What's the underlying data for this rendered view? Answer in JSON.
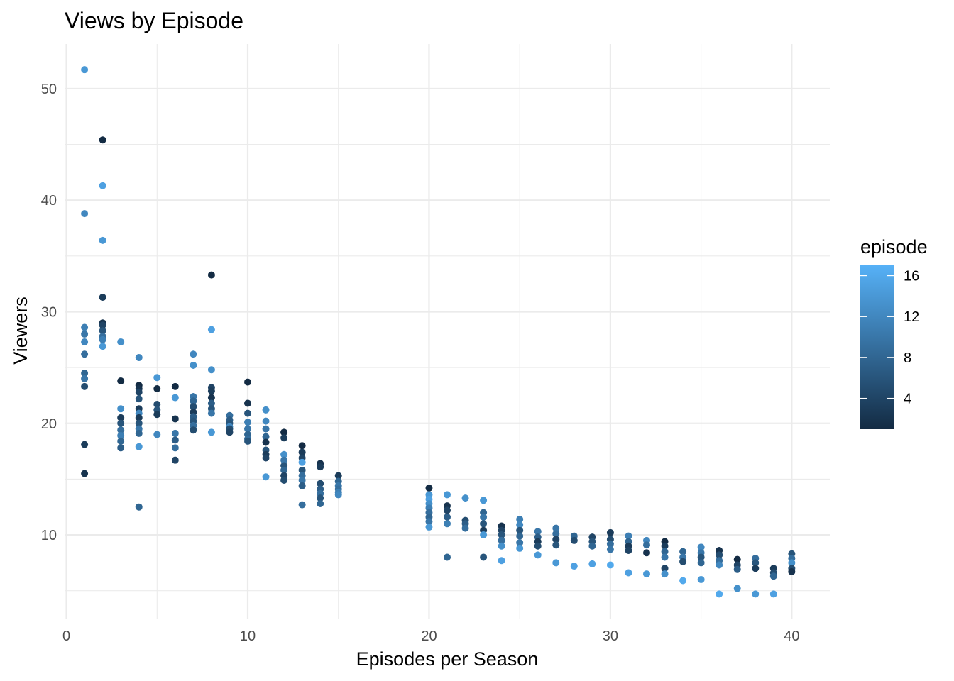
{
  "chart_data": {
    "type": "scatter",
    "title": "Views by Episode",
    "xlabel": "Episodes per Season",
    "ylabel": "Viewers",
    "xlim": [
      -0.1,
      42.1
    ],
    "ylim": [
      2.5,
      54
    ],
    "x_ticks": [
      0,
      10,
      20,
      30,
      40
    ],
    "y_ticks": [
      10,
      20,
      30,
      40,
      50
    ],
    "grid": true,
    "legend": {
      "title": "episode",
      "placement": "right",
      "ticks": [
        4,
        8,
        12,
        16
      ],
      "range": [
        1,
        17
      ],
      "color_low": "#132b43",
      "color_high": "#56b1f7"
    },
    "points": [
      [
        1,
        51.7,
        14
      ],
      [
        1,
        38.8,
        12
      ],
      [
        1,
        28.6,
        11
      ],
      [
        1,
        28.0,
        10
      ],
      [
        1,
        27.3,
        12
      ],
      [
        1,
        26.2,
        9
      ],
      [
        1,
        24.5,
        8
      ],
      [
        1,
        24.0,
        10
      ],
      [
        1,
        23.3,
        5
      ],
      [
        1,
        18.1,
        3
      ],
      [
        1,
        15.5,
        2
      ],
      [
        2,
        45.4,
        1
      ],
      [
        2,
        41.3,
        15
      ],
      [
        2,
        36.4,
        14
      ],
      [
        2,
        31.3,
        3
      ],
      [
        2,
        29.0,
        2
      ],
      [
        2,
        28.8,
        4
      ],
      [
        2,
        28.3,
        6
      ],
      [
        2,
        27.8,
        9
      ],
      [
        2,
        27.5,
        11
      ],
      [
        2,
        26.9,
        14
      ],
      [
        3,
        27.3,
        13
      ],
      [
        3,
        23.8,
        1
      ],
      [
        3,
        21.3,
        13
      ],
      [
        3,
        20.5,
        3
      ],
      [
        3,
        20.0,
        6
      ],
      [
        3,
        19.4,
        9
      ],
      [
        3,
        18.9,
        11
      ],
      [
        3,
        18.4,
        8
      ],
      [
        3,
        17.8,
        7
      ],
      [
        4,
        25.9,
        12
      ],
      [
        4,
        23.4,
        1
      ],
      [
        4,
        23.1,
        2
      ],
      [
        4,
        22.8,
        4
      ],
      [
        4,
        22.2,
        6
      ],
      [
        4,
        21.3,
        3
      ],
      [
        4,
        20.9,
        12
      ],
      [
        4,
        20.5,
        3
      ],
      [
        4,
        20.0,
        6
      ],
      [
        4,
        19.5,
        10
      ],
      [
        4,
        19.1,
        8
      ],
      [
        4,
        17.9,
        14
      ],
      [
        4,
        12.5,
        8
      ],
      [
        5,
        24.1,
        14
      ],
      [
        5,
        23.1,
        1
      ],
      [
        5,
        21.7,
        5
      ],
      [
        5,
        21.2,
        6
      ],
      [
        5,
        20.8,
        3
      ],
      [
        5,
        19.0,
        12
      ],
      [
        6,
        23.3,
        1
      ],
      [
        6,
        22.3,
        14
      ],
      [
        6,
        20.4,
        2
      ],
      [
        6,
        19.1,
        10
      ],
      [
        6,
        18.5,
        7
      ],
      [
        6,
        17.8,
        9
      ],
      [
        6,
        16.7,
        4
      ],
      [
        7,
        26.2,
        12
      ],
      [
        7,
        25.2,
        13
      ],
      [
        7,
        22.4,
        10
      ],
      [
        7,
        22.0,
        8
      ],
      [
        7,
        21.5,
        5
      ],
      [
        7,
        21.0,
        3
      ],
      [
        7,
        20.6,
        7
      ],
      [
        7,
        20.2,
        6
      ],
      [
        7,
        19.8,
        9
      ],
      [
        7,
        19.4,
        5
      ],
      [
        8,
        33.3,
        1
      ],
      [
        8,
        28.4,
        15
      ],
      [
        8,
        24.8,
        13
      ],
      [
        8,
        23.2,
        4
      ],
      [
        8,
        22.9,
        3
      ],
      [
        8,
        22.3,
        2
      ],
      [
        8,
        21.8,
        7
      ],
      [
        8,
        21.3,
        6
      ],
      [
        8,
        20.9,
        10
      ],
      [
        8,
        19.2,
        14
      ],
      [
        9,
        20.7,
        9
      ],
      [
        9,
        20.3,
        7
      ],
      [
        9,
        20.0,
        6
      ],
      [
        9,
        19.7,
        12
      ],
      [
        9,
        19.5,
        5
      ],
      [
        9,
        19.2,
        4
      ],
      [
        10,
        23.7,
        1
      ],
      [
        10,
        21.8,
        2
      ],
      [
        10,
        20.9,
        6
      ],
      [
        10,
        20.1,
        11
      ],
      [
        10,
        19.5,
        10
      ],
      [
        10,
        19.0,
        8
      ],
      [
        10,
        18.6,
        9
      ],
      [
        10,
        18.4,
        6
      ],
      [
        11,
        21.2,
        13
      ],
      [
        11,
        20.2,
        12
      ],
      [
        11,
        19.5,
        10
      ],
      [
        11,
        18.8,
        8
      ],
      [
        11,
        18.3,
        2
      ],
      [
        11,
        17.6,
        6
      ],
      [
        11,
        17.2,
        3
      ],
      [
        11,
        16.9,
        4
      ],
      [
        11,
        15.2,
        14
      ],
      [
        12,
        19.2,
        1
      ],
      [
        12,
        18.7,
        3
      ],
      [
        12,
        17.2,
        13
      ],
      [
        12,
        16.7,
        10
      ],
      [
        12,
        16.2,
        6
      ],
      [
        12,
        15.8,
        8
      ],
      [
        12,
        15.3,
        4
      ],
      [
        12,
        14.9,
        5
      ],
      [
        13,
        18.0,
        1
      ],
      [
        13,
        17.4,
        3
      ],
      [
        13,
        16.9,
        4
      ],
      [
        13,
        16.5,
        15
      ],
      [
        13,
        15.8,
        6
      ],
      [
        13,
        15.3,
        9
      ],
      [
        13,
        14.9,
        10
      ],
      [
        13,
        14.4,
        7
      ],
      [
        13,
        12.7,
        9
      ],
      [
        14,
        16.4,
        2
      ],
      [
        14,
        16.1,
        3
      ],
      [
        14,
        14.6,
        5
      ],
      [
        14,
        14.1,
        7
      ],
      [
        14,
        13.7,
        9
      ],
      [
        14,
        13.3,
        6
      ],
      [
        14,
        12.8,
        8
      ],
      [
        15,
        15.3,
        3
      ],
      [
        15,
        14.8,
        8
      ],
      [
        15,
        14.4,
        10
      ],
      [
        15,
        14.1,
        9
      ],
      [
        15,
        13.8,
        11
      ],
      [
        15,
        13.6,
        12
      ],
      [
        20,
        14.2,
        1
      ],
      [
        20,
        13.6,
        14
      ],
      [
        20,
        13.2,
        15
      ],
      [
        20,
        12.8,
        13
      ],
      [
        20,
        12.4,
        11
      ],
      [
        20,
        12.0,
        9
      ],
      [
        20,
        11.6,
        8
      ],
      [
        20,
        11.2,
        10
      ],
      [
        20,
        10.7,
        14
      ],
      [
        21,
        13.6,
        14
      ],
      [
        21,
        12.6,
        2
      ],
      [
        21,
        12.2,
        4
      ],
      [
        21,
        11.6,
        7
      ],
      [
        21,
        11.0,
        11
      ],
      [
        21,
        8.0,
        8
      ],
      [
        22,
        13.3,
        13
      ],
      [
        22,
        11.3,
        5
      ],
      [
        22,
        11.0,
        7
      ],
      [
        22,
        10.6,
        9
      ],
      [
        23,
        13.1,
        14
      ],
      [
        23,
        12.0,
        8
      ],
      [
        23,
        11.6,
        10
      ],
      [
        23,
        11.0,
        6
      ],
      [
        23,
        10.4,
        3
      ],
      [
        23,
        10.0,
        14
      ],
      [
        23,
        8.0,
        6
      ],
      [
        24,
        10.8,
        2
      ],
      [
        24,
        10.4,
        4
      ],
      [
        24,
        10.0,
        6
      ],
      [
        24,
        9.5,
        9
      ],
      [
        24,
        9.0,
        13
      ],
      [
        24,
        7.7,
        15
      ],
      [
        25,
        11.4,
        11
      ],
      [
        25,
        10.9,
        12
      ],
      [
        25,
        10.4,
        6
      ],
      [
        25,
        9.9,
        8
      ],
      [
        25,
        9.3,
        10
      ],
      [
        25,
        8.8,
        14
      ],
      [
        26,
        10.3,
        10
      ],
      [
        26,
        9.8,
        7
      ],
      [
        26,
        9.4,
        3
      ],
      [
        26,
        9.0,
        5
      ],
      [
        26,
        8.2,
        14
      ],
      [
        27,
        10.6,
        10
      ],
      [
        27,
        10.1,
        9
      ],
      [
        27,
        9.6,
        4
      ],
      [
        27,
        9.1,
        6
      ],
      [
        27,
        7.5,
        14
      ],
      [
        28,
        9.9,
        8
      ],
      [
        28,
        9.5,
        5
      ],
      [
        28,
        7.2,
        15
      ],
      [
        29,
        9.8,
        4
      ],
      [
        29,
        9.4,
        6
      ],
      [
        29,
        9.0,
        8
      ],
      [
        29,
        7.4,
        15
      ],
      [
        30,
        10.2,
        3
      ],
      [
        30,
        9.6,
        5
      ],
      [
        30,
        9.2,
        9
      ],
      [
        30,
        8.7,
        10
      ],
      [
        30,
        7.3,
        16
      ],
      [
        31,
        9.9,
        11
      ],
      [
        31,
        9.4,
        8
      ],
      [
        31,
        9.0,
        3
      ],
      [
        31,
        8.6,
        4
      ],
      [
        31,
        6.6,
        15
      ],
      [
        32,
        9.5,
        12
      ],
      [
        32,
        9.1,
        9
      ],
      [
        32,
        8.4,
        2
      ],
      [
        32,
        6.5,
        14
      ],
      [
        33,
        9.4,
        1
      ],
      [
        33,
        9.0,
        3
      ],
      [
        33,
        8.5,
        8
      ],
      [
        33,
        8.0,
        10
      ],
      [
        33,
        7.0,
        4
      ],
      [
        33,
        6.5,
        13
      ],
      [
        34,
        8.5,
        8
      ],
      [
        34,
        8.0,
        10
      ],
      [
        34,
        7.6,
        5
      ],
      [
        34,
        5.9,
        16
      ],
      [
        35,
        8.9,
        12
      ],
      [
        35,
        8.4,
        10
      ],
      [
        35,
        8.0,
        6
      ],
      [
        35,
        7.5,
        8
      ],
      [
        35,
        6.0,
        14
      ],
      [
        36,
        8.6,
        2
      ],
      [
        36,
        8.2,
        5
      ],
      [
        36,
        7.7,
        9
      ],
      [
        36,
        7.3,
        12
      ],
      [
        36,
        4.7,
        16
      ],
      [
        37,
        7.8,
        1
      ],
      [
        37,
        7.3,
        4
      ],
      [
        37,
        6.9,
        7
      ],
      [
        37,
        5.2,
        13
      ],
      [
        38,
        7.9,
        9
      ],
      [
        38,
        7.5,
        6
      ],
      [
        38,
        7.0,
        3
      ],
      [
        38,
        4.7,
        14
      ],
      [
        39,
        7.0,
        3
      ],
      [
        39,
        6.6,
        5
      ],
      [
        39,
        6.3,
        8
      ],
      [
        39,
        4.7,
        15
      ],
      [
        40,
        8.3,
        6
      ],
      [
        40,
        7.9,
        9
      ],
      [
        40,
        7.5,
        13
      ],
      [
        40,
        7.0,
        5
      ],
      [
        40,
        6.7,
        2
      ]
    ]
  }
}
